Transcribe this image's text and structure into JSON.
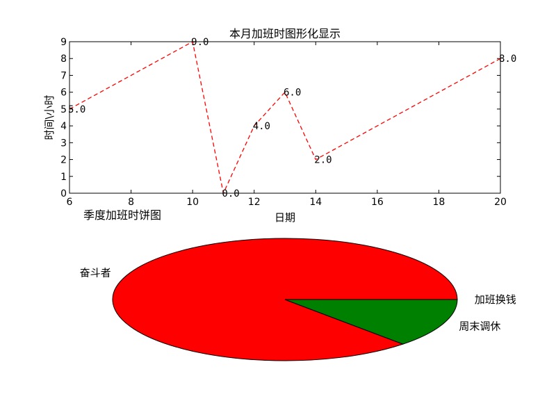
{
  "chart_data": [
    {
      "type": "line",
      "title": "本月加班时图形化显示",
      "xlabel": "日期",
      "ylabel": "时间\\小时",
      "xlim": [
        6,
        20
      ],
      "ylim": [
        0,
        9
      ],
      "x_ticks": [
        "6",
        "8",
        "10",
        "12",
        "14",
        "16",
        "18",
        "20"
      ],
      "y_ticks": [
        "0",
        "1",
        "2",
        "3",
        "4",
        "5",
        "6",
        "7",
        "8",
        "9"
      ],
      "grid": false,
      "series": [
        {
          "color": "#ff0000",
          "line_style": "dashed",
          "x": [
            6,
            10,
            11,
            12,
            13,
            14,
            20
          ],
          "values": [
            5,
            9,
            0,
            4,
            6,
            2,
            8
          ],
          "data_labels": [
            "5.0",
            "9.0",
            "0.0",
            "4.0",
            "6.0",
            "2.0",
            "8.0"
          ]
        }
      ]
    },
    {
      "type": "pie",
      "title": "季度加班时饼图",
      "slices": [
        {
          "label": "奋斗者",
          "value": 87,
          "color": "#ff0000"
        },
        {
          "label": "周末调休",
          "value": 13,
          "color": "#008000"
        },
        {
          "label": "加班换钱",
          "value": 0,
          "color": "#0000ff"
        }
      ]
    }
  ]
}
